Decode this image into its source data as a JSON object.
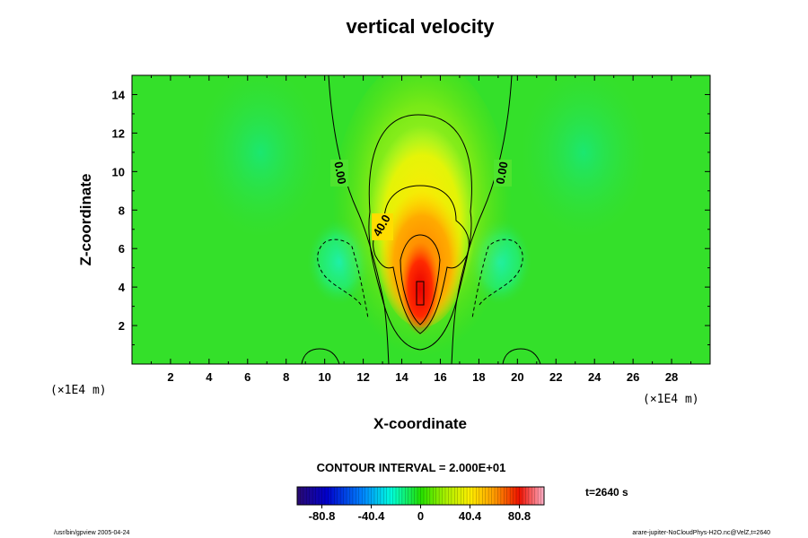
{
  "chart_data": {
    "type": "heatmap",
    "title": "vertical velocity",
    "xlabel": "X-coordinate",
    "ylabel": "Z-coordinate",
    "x_unit": "(×1E4 m)",
    "z_unit": "(×1E4 m)",
    "xlim": [
      0,
      30
    ],
    "ylim": [
      0,
      15
    ],
    "x_ticks": [
      2,
      4,
      6,
      8,
      10,
      12,
      14,
      16,
      18,
      20,
      22,
      24,
      26,
      28
    ],
    "y_ticks": [
      2,
      4,
      6,
      8,
      10,
      12,
      14
    ],
    "contour_interval_text": "CONTOUR INTERVAL = 2.000E+01",
    "contour_labels": [
      {
        "text": "0.00",
        "x": 10.6,
        "z": 9.8
      },
      {
        "text": "0.00",
        "x": 19.5,
        "z": 9.8
      },
      {
        "text": "40.0",
        "x": 13.0,
        "z": 6.8
      }
    ],
    "colorbar": {
      "min": -101,
      "max": 101,
      "tick_labels": [
        "-80.8",
        "-40.4",
        "0",
        "40.4",
        "80.8"
      ],
      "tick_values": [
        -80.8,
        -40.4,
        0,
        40.4,
        80.8
      ]
    },
    "max_updraft_location": {
      "x": 15,
      "z": 3.8
    },
    "time_label": "t=2640 s",
    "footer_left": "/usr/bin/gpview 2005-04-24",
    "footer_right": "arare-jupiter-NoCloudPhys-H2O.nc@VelZ,t=2640"
  }
}
